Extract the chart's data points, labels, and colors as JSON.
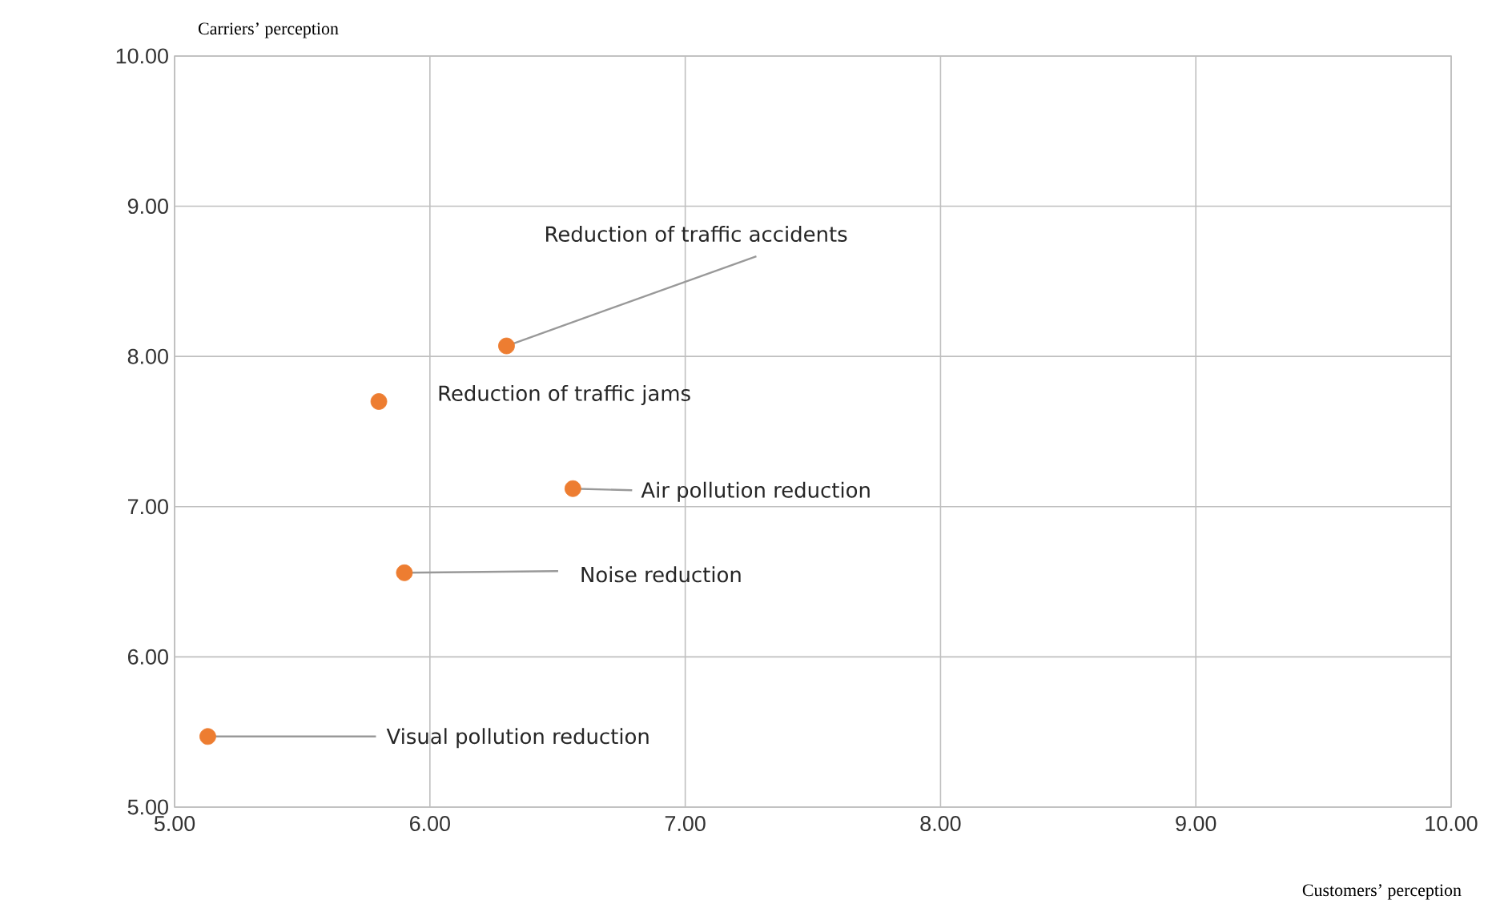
{
  "chart_data": {
    "type": "scatter",
    "xlabel": "Customers’ perception",
    "ylabel": "Carriers’ perception",
    "series": [
      {
        "color": "#ed7d31",
        "x": [
          6.3,
          5.8,
          6.56,
          5.9,
          5.13
        ],
        "values": [
          8.07,
          7.7,
          7.12,
          6.56,
          5.47
        ]
      }
    ],
    "annotations": [
      {
        "text": "Reduction of traffic accidents",
        "x": 6.3,
        "y": 8.07
      },
      {
        "text": "Reduction of traffic jams",
        "x": 5.8,
        "y": 7.7
      },
      {
        "text": "Air pollution reduction",
        "x": 6.56,
        "y": 7.12
      },
      {
        "text": "Noise reduction",
        "x": 5.9,
        "y": 6.56
      },
      {
        "text": "Visual pollution reduction",
        "x": 5.13,
        "y": 5.47
      }
    ],
    "xlim": [
      5,
      10
    ],
    "ylim": [
      5,
      10
    ],
    "xticks": [
      {
        "value": 5,
        "label": "5.00"
      },
      {
        "value": 6,
        "label": "6.00"
      },
      {
        "value": 7,
        "label": "7.00"
      },
      {
        "value": 8,
        "label": "8.00"
      },
      {
        "value": 9,
        "label": "9.00"
      },
      {
        "value": 10,
        "label": "10.00"
      }
    ],
    "yticks": [
      {
        "value": 5,
        "label": "5.00"
      },
      {
        "value": 6,
        "label": "6.00"
      },
      {
        "value": 7,
        "label": "7.00"
      },
      {
        "value": 8,
        "label": "8.00"
      },
      {
        "value": 9,
        "label": "9.00"
      },
      {
        "value": 10,
        "label": "10.00"
      }
    ],
    "grid": true
  }
}
